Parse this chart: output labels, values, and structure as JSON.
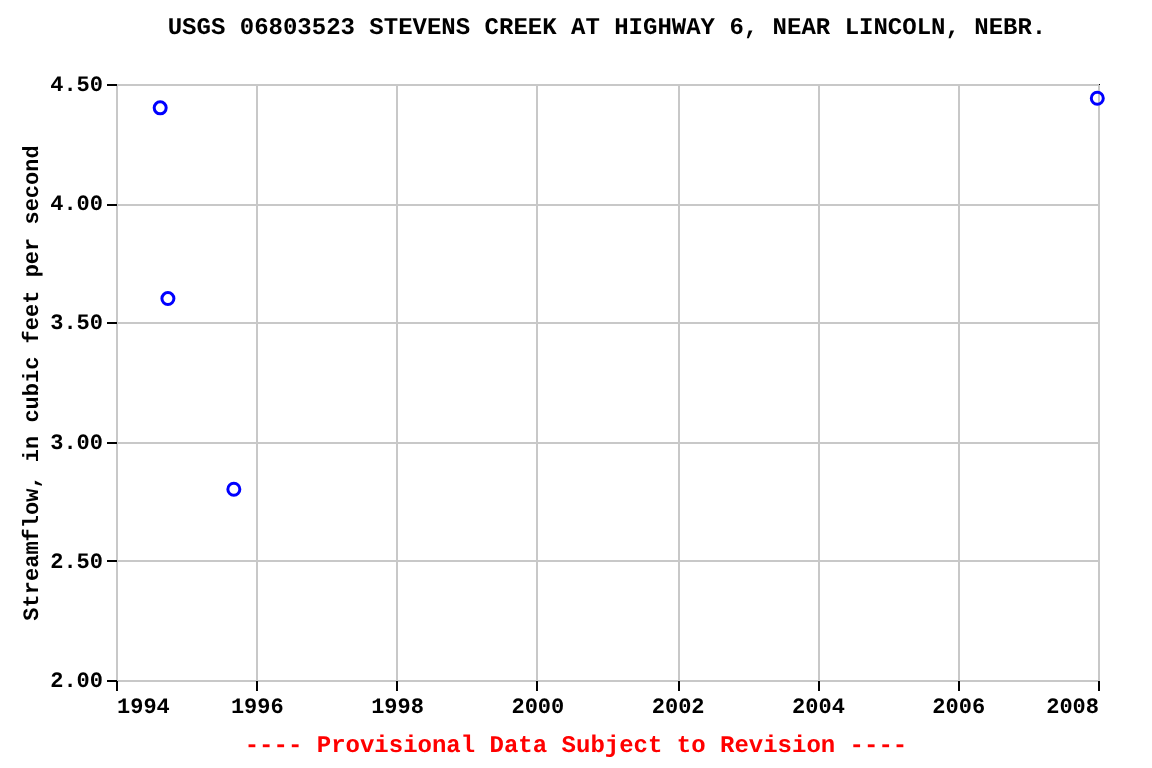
{
  "chart_data": {
    "type": "scatter",
    "title": "USGS 06803523 STEVENS CREEK AT HIGHWAY 6, NEAR LINCOLN, NEBR.",
    "ylabel": "Streamflow, in cubic feet per second",
    "annotations": [
      "---- Provisional Data Subject to Revision ----"
    ],
    "x": [
      1994.63,
      1994.74,
      1995.68,
      2007.99
    ],
    "series": [
      {
        "color": "#0000ff",
        "values": [
          4.4,
          3.6,
          2.8,
          4.44
        ]
      }
    ],
    "xlim": [
      1994,
      2008
    ],
    "xticks": [
      1994,
      1996,
      1998,
      2000,
      2002,
      2004,
      2006,
      2008
    ],
    "ylim": [
      2.0,
      4.5
    ],
    "yticks": [
      {
        "value": 2.0,
        "label": "2.00"
      },
      {
        "value": 2.5,
        "label": "2.50"
      },
      {
        "value": 3.0,
        "label": "3.00"
      },
      {
        "value": 3.5,
        "label": "3.50"
      },
      {
        "value": 4.0,
        "label": "4.00"
      },
      {
        "value": 4.5,
        "label": "4.50"
      }
    ],
    "grid": true,
    "marker": "circle"
  }
}
